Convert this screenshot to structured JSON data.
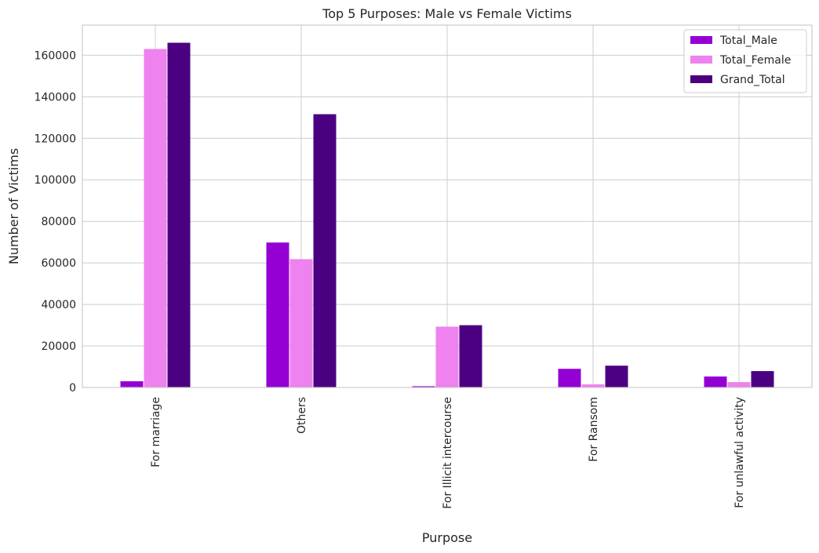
{
  "chart_data": {
    "type": "bar",
    "title": "Top 5 Purposes: Male vs Female Victims",
    "xlabel": "Purpose",
    "ylabel": "Number of Victims",
    "categories": [
      "For marriage",
      "Others",
      "For Illicit intercourse",
      "For Ransom",
      "For unlawful activity"
    ],
    "series": [
      {
        "name": "Total_Male",
        "color": "#9400d3",
        "values": [
          3000,
          69800,
          600,
          9000,
          5300
        ]
      },
      {
        "name": "Total_Female",
        "color": "#ee82ee",
        "values": [
          163000,
          61800,
          29300,
          1500,
          2600
        ]
      },
      {
        "name": "Grand_Total",
        "color": "#4b0082",
        "values": [
          166000,
          131600,
          30000,
          10500,
          7900
        ]
      }
    ],
    "yticks": [
      0,
      20000,
      40000,
      60000,
      80000,
      100000,
      120000,
      140000,
      160000
    ],
    "ylim": [
      0,
      174500
    ],
    "grid": true,
    "legend_position": "top-right"
  }
}
